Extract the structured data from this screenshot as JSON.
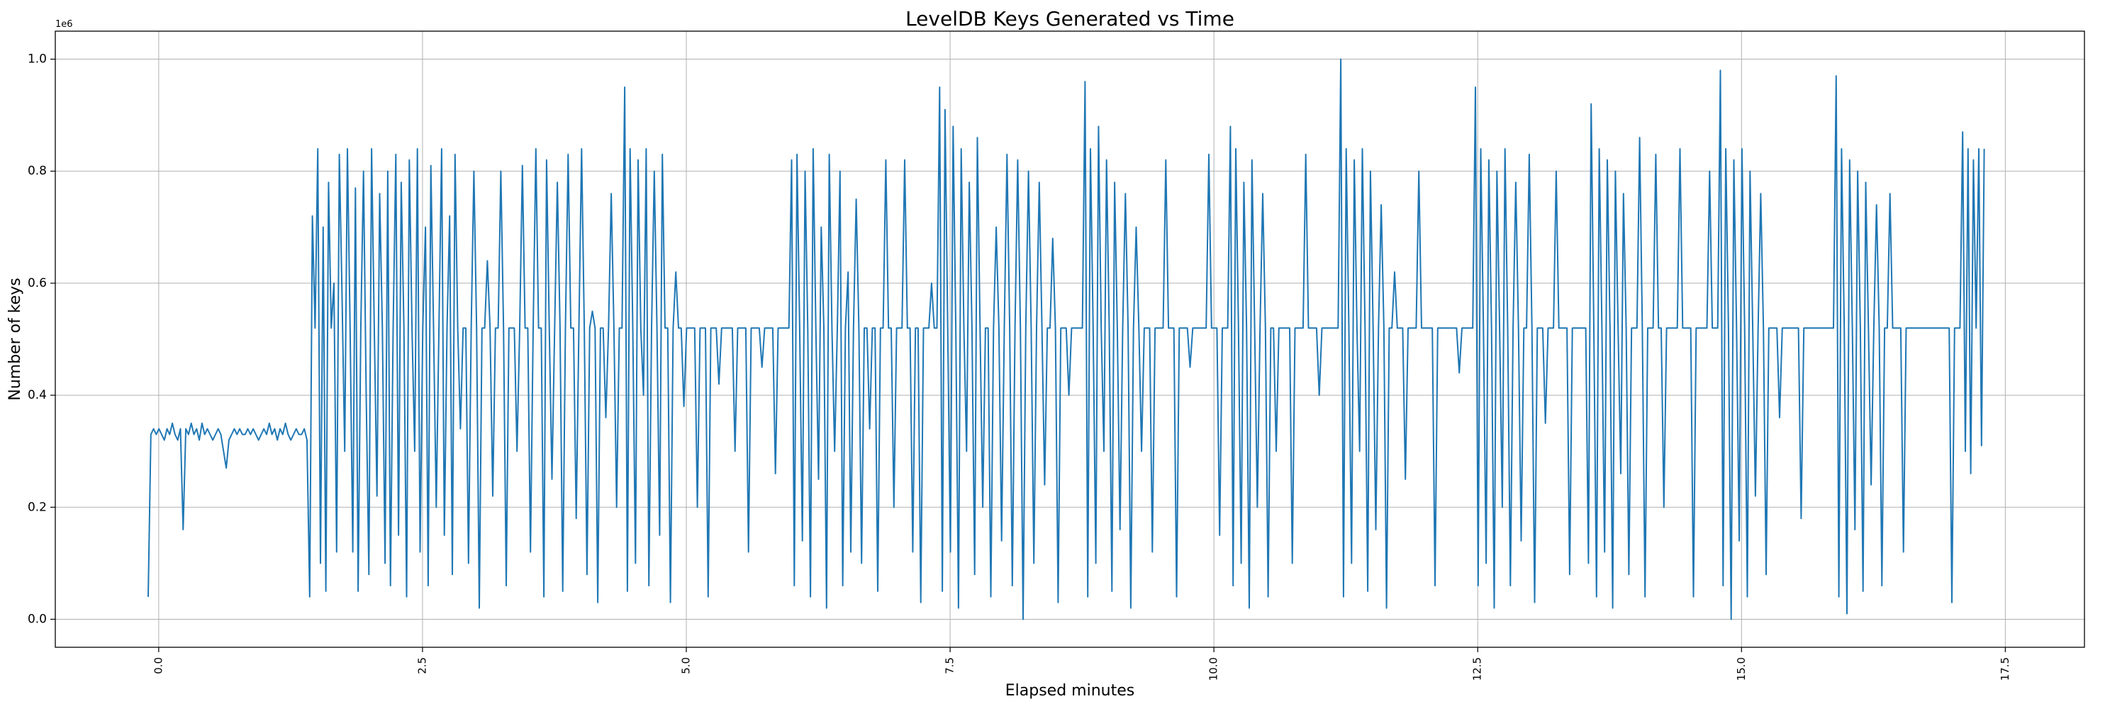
{
  "chart_data": {
    "type": "line",
    "title": "LevelDB Keys Generated vs Time",
    "xlabel": "Elapsed minutes",
    "ylabel": "Number of keys",
    "y_offset_label": "1e6",
    "xlim": [
      -0.98,
      18.25
    ],
    "ylim": [
      -0.05,
      1.05
    ],
    "x_ticks": [
      0.0,
      2.5,
      5.0,
      7.5,
      10.0,
      12.5,
      15.0,
      17.5
    ],
    "x_tick_labels": [
      "0.0",
      "2.5",
      "5.0",
      "7.5",
      "10.0",
      "12.5",
      "15.0",
      "17.5"
    ],
    "y_ticks": [
      0.0,
      0.2,
      0.4,
      0.6,
      0.8,
      1.0
    ],
    "y_tick_labels": [
      "0.0",
      "0.2",
      "0.4",
      "0.6",
      "0.8",
      "1.0"
    ],
    "grid": true,
    "legend": "none",
    "series_color": "#1f77b4",
    "series": [
      {
        "name": "keys",
        "x_start": -0.1,
        "x_end": 17.3,
        "y": [
          0.04,
          0.33,
          0.34,
          0.33,
          0.34,
          0.33,
          0.32,
          0.34,
          0.33,
          0.35,
          0.33,
          0.32,
          0.34,
          0.16,
          0.34,
          0.33,
          0.35,
          0.33,
          0.34,
          0.32,
          0.35,
          0.33,
          0.34,
          0.33,
          0.32,
          0.33,
          0.34,
          0.33,
          0.3,
          0.27,
          0.32,
          0.33,
          0.34,
          0.33,
          0.34,
          0.33,
          0.33,
          0.34,
          0.33,
          0.34,
          0.33,
          0.32,
          0.33,
          0.34,
          0.33,
          0.35,
          0.33,
          0.34,
          0.32,
          0.34,
          0.33,
          0.35,
          0.33,
          0.32,
          0.33,
          0.34,
          0.33,
          0.33,
          0.34,
          0.32,
          0.04,
          0.72,
          0.52,
          0.84,
          0.1,
          0.7,
          0.05,
          0.78,
          0.52,
          0.6,
          0.12,
          0.83,
          0.58,
          0.3,
          0.84,
          0.52,
          0.12,
          0.77,
          0.05,
          0.52,
          0.8,
          0.4,
          0.08,
          0.84,
          0.52,
          0.22,
          0.76,
          0.52,
          0.1,
          0.8,
          0.06,
          0.52,
          0.83,
          0.15,
          0.78,
          0.52,
          0.04,
          0.82,
          0.52,
          0.3,
          0.84,
          0.12,
          0.52,
          0.7,
          0.06,
          0.81,
          0.52,
          0.2,
          0.52,
          0.84,
          0.15,
          0.52,
          0.72,
          0.08,
          0.83,
          0.52,
          0.34,
          0.52,
          0.52,
          0.1,
          0.52,
          0.8,
          0.52,
          0.02,
          0.52,
          0.52,
          0.64,
          0.52,
          0.22,
          0.52,
          0.52,
          0.8,
          0.52,
          0.06,
          0.52,
          0.52,
          0.52,
          0.3,
          0.52,
          0.81,
          0.52,
          0.52,
          0.12,
          0.52,
          0.84,
          0.52,
          0.52,
          0.04,
          0.82,
          0.52,
          0.25,
          0.52,
          0.78,
          0.52,
          0.05,
          0.52,
          0.83,
          0.52,
          0.52,
          0.18,
          0.52,
          0.84,
          0.52,
          0.08,
          0.52,
          0.55,
          0.52,
          0.03,
          0.52,
          0.52,
          0.36,
          0.52,
          0.76,
          0.52,
          0.2,
          0.52,
          0.52,
          0.95,
          0.05,
          0.84,
          0.52,
          0.1,
          0.82,
          0.52,
          0.4,
          0.84,
          0.06,
          0.52,
          0.8,
          0.52,
          0.15,
          0.83,
          0.52,
          0.52,
          0.03,
          0.52,
          0.62,
          0.52,
          0.52,
          0.38,
          0.52,
          0.52,
          0.52,
          0.52,
          0.2,
          0.52,
          0.52,
          0.52,
          0.04,
          0.52,
          0.52,
          0.52,
          0.42,
          0.52,
          0.52,
          0.52,
          0.52,
          0.52,
          0.3,
          0.52,
          0.52,
          0.52,
          0.52,
          0.12,
          0.52,
          0.52,
          0.52,
          0.52,
          0.45,
          0.52,
          0.52,
          0.52,
          0.52,
          0.26,
          0.52,
          0.52,
          0.52,
          0.52,
          0.52,
          0.82,
          0.06,
          0.83,
          0.52,
          0.14,
          0.8,
          0.52,
          0.04,
          0.84,
          0.52,
          0.25,
          0.7,
          0.52,
          0.02,
          0.83,
          0.52,
          0.3,
          0.52,
          0.8,
          0.06,
          0.52,
          0.62,
          0.12,
          0.52,
          0.75,
          0.52,
          0.1,
          0.52,
          0.52,
          0.34,
          0.52,
          0.52,
          0.05,
          0.52,
          0.52,
          0.82,
          0.52,
          0.52,
          0.2,
          0.52,
          0.52,
          0.52,
          0.82,
          0.52,
          0.52,
          0.12,
          0.52,
          0.52,
          0.03,
          0.52,
          0.52,
          0.52,
          0.6,
          0.52,
          0.52,
          0.95,
          0.05,
          0.91,
          0.52,
          0.12,
          0.88,
          0.52,
          0.02,
          0.84,
          0.52,
          0.3,
          0.78,
          0.52,
          0.08,
          0.86,
          0.52,
          0.2,
          0.52,
          0.52,
          0.04,
          0.52,
          0.7,
          0.52,
          0.14,
          0.52,
          0.83,
          0.52,
          0.06,
          0.52,
          0.82,
          0.52,
          0.0,
          0.52,
          0.8,
          0.52,
          0.1,
          0.52,
          0.78,
          0.52,
          0.24,
          0.52,
          0.52,
          0.68,
          0.52,
          0.03,
          0.52,
          0.52,
          0.52,
          0.4,
          0.52,
          0.52,
          0.52,
          0.52,
          0.52,
          0.96,
          0.04,
          0.84,
          0.52,
          0.1,
          0.88,
          0.52,
          0.3,
          0.82,
          0.52,
          0.05,
          0.78,
          0.52,
          0.16,
          0.52,
          0.76,
          0.52,
          0.02,
          0.52,
          0.7,
          0.52,
          0.3,
          0.52,
          0.52,
          0.52,
          0.12,
          0.52,
          0.52,
          0.52,
          0.52,
          0.82,
          0.52,
          0.52,
          0.52,
          0.04,
          0.52,
          0.52,
          0.52,
          0.52,
          0.45,
          0.52,
          0.52,
          0.52,
          0.52,
          0.52,
          0.52,
          0.83,
          0.52,
          0.52,
          0.52,
          0.15,
          0.52,
          0.52,
          0.52,
          0.88,
          0.06,
          0.84,
          0.52,
          0.1,
          0.78,
          0.52,
          0.02,
          0.82,
          0.52,
          0.2,
          0.52,
          0.76,
          0.52,
          0.04,
          0.52,
          0.52,
          0.3,
          0.52,
          0.52,
          0.52,
          0.52,
          0.52,
          0.1,
          0.52,
          0.52,
          0.52,
          0.52,
          0.83,
          0.52,
          0.52,
          0.52,
          0.52,
          0.4,
          0.52,
          0.52,
          0.52,
          0.52,
          0.52,
          0.52,
          0.52,
          1.0,
          0.04,
          0.84,
          0.52,
          0.1,
          0.82,
          0.52,
          0.3,
          0.84,
          0.52,
          0.05,
          0.8,
          0.52,
          0.16,
          0.52,
          0.74,
          0.52,
          0.02,
          0.52,
          0.52,
          0.62,
          0.52,
          0.52,
          0.52,
          0.25,
          0.52,
          0.52,
          0.52,
          0.52,
          0.8,
          0.52,
          0.52,
          0.52,
          0.52,
          0.52,
          0.06,
          0.52,
          0.52,
          0.52,
          0.52,
          0.52,
          0.52,
          0.52,
          0.52,
          0.44,
          0.52,
          0.52,
          0.52,
          0.52,
          0.52,
          0.95,
          0.06,
          0.84,
          0.52,
          0.1,
          0.82,
          0.52,
          0.02,
          0.8,
          0.52,
          0.2,
          0.84,
          0.52,
          0.06,
          0.52,
          0.78,
          0.52,
          0.14,
          0.52,
          0.52,
          0.83,
          0.52,
          0.03,
          0.52,
          0.52,
          0.52,
          0.35,
          0.52,
          0.52,
          0.52,
          0.8,
          0.52,
          0.52,
          0.52,
          0.52,
          0.08,
          0.52,
          0.52,
          0.52,
          0.52,
          0.52,
          0.52,
          0.1,
          0.92,
          0.52,
          0.04,
          0.84,
          0.52,
          0.12,
          0.82,
          0.52,
          0.02,
          0.8,
          0.52,
          0.26,
          0.76,
          0.52,
          0.08,
          0.52,
          0.52,
          0.52,
          0.86,
          0.52,
          0.04,
          0.52,
          0.52,
          0.52,
          0.83,
          0.52,
          0.52,
          0.2,
          0.52,
          0.52,
          0.52,
          0.52,
          0.52,
          0.84,
          0.52,
          0.52,
          0.52,
          0.52,
          0.04,
          0.52,
          0.52,
          0.52,
          0.52,
          0.52,
          0.8,
          0.52,
          0.52,
          0.52,
          0.98,
          0.06,
          0.84,
          0.52,
          0.0,
          0.82,
          0.52,
          0.14,
          0.84,
          0.52,
          0.04,
          0.8,
          0.52,
          0.22,
          0.52,
          0.76,
          0.52,
          0.08,
          0.52,
          0.52,
          0.52,
          0.52,
          0.36,
          0.52,
          0.52,
          0.52,
          0.52,
          0.52,
          0.52,
          0.52,
          0.18,
          0.52,
          0.52,
          0.52,
          0.52,
          0.52,
          0.52,
          0.52,
          0.52,
          0.52,
          0.52,
          0.52,
          0.52,
          0.97,
          0.04,
          0.84,
          0.52,
          0.01,
          0.82,
          0.52,
          0.16,
          0.8,
          0.52,
          0.05,
          0.78,
          0.52,
          0.24,
          0.52,
          0.74,
          0.52,
          0.06,
          0.52,
          0.52,
          0.76,
          0.52,
          0.52,
          0.52,
          0.52,
          0.12,
          0.52,
          0.52,
          0.52,
          0.52,
          0.52,
          0.52,
          0.52,
          0.52,
          0.52,
          0.52,
          0.52,
          0.52,
          0.52,
          0.52,
          0.52,
          0.52,
          0.52,
          0.03,
          0.52,
          0.52,
          0.52,
          0.87,
          0.3,
          0.84,
          0.26,
          0.82,
          0.52,
          0.84,
          0.31,
          0.84
        ]
      }
    ]
  }
}
